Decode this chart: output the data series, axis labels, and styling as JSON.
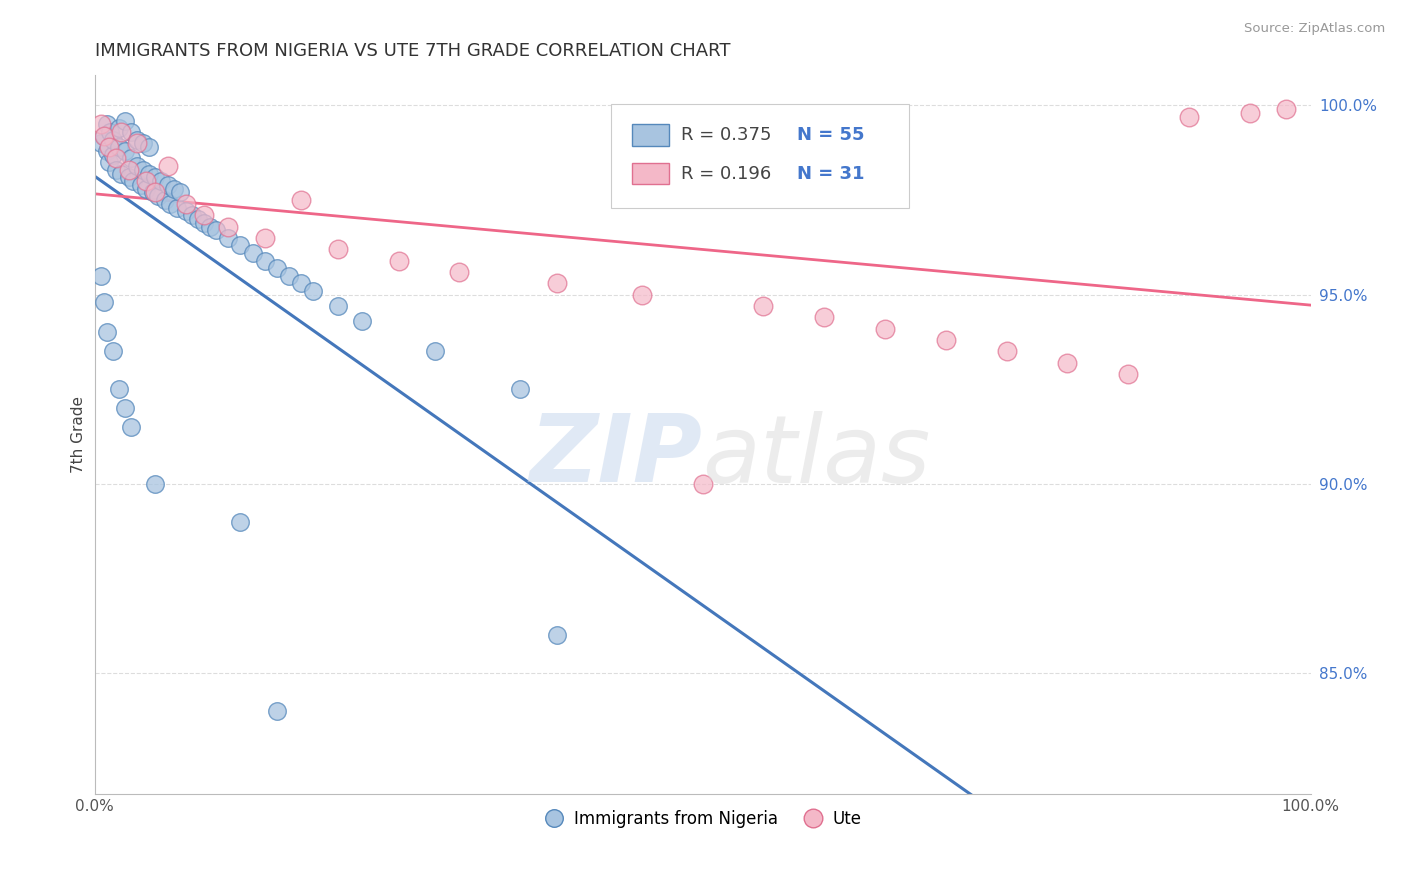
{
  "title": "IMMIGRANTS FROM NIGERIA VS UTE 7TH GRADE CORRELATION CHART",
  "source_text": "Source: ZipAtlas.com",
  "ylabel": "7th Grade",
  "blue_label": "Immigrants from Nigeria",
  "pink_label": "Ute",
  "blue_R": 0.375,
  "blue_N": 55,
  "pink_R": 0.196,
  "pink_N": 31,
  "xmin": 0.0,
  "xmax": 1.0,
  "ymin": 0.818,
  "ymax": 1.008,
  "yticks": [
    0.85,
    0.9,
    0.95,
    1.0
  ],
  "ytick_labels": [
    "85.0%",
    "90.0%",
    "95.0%",
    "100.0%"
  ],
  "xtick_labels": [
    "0.0%",
    "100.0%"
  ],
  "blue_scatter_x": [
    0.005,
    0.008,
    0.01,
    0.01,
    0.012,
    0.013,
    0.015,
    0.015,
    0.018,
    0.02,
    0.02,
    0.022,
    0.025,
    0.025,
    0.028,
    0.03,
    0.03,
    0.032,
    0.035,
    0.035,
    0.038,
    0.04,
    0.04,
    0.042,
    0.045,
    0.045,
    0.048,
    0.05,
    0.052,
    0.055,
    0.058,
    0.06,
    0.062,
    0.065,
    0.068,
    0.07,
    0.075,
    0.08,
    0.085,
    0.09,
    0.095,
    0.1,
    0.11,
    0.12,
    0.13,
    0.14,
    0.15,
    0.16,
    0.17,
    0.18,
    0.2,
    0.22,
    0.28,
    0.35,
    0.38
  ],
  "blue_scatter_y": [
    0.99,
    0.992,
    0.988,
    0.995,
    0.985,
    0.993,
    0.987,
    0.991,
    0.983,
    0.989,
    0.994,
    0.982,
    0.988,
    0.996,
    0.981,
    0.986,
    0.993,
    0.98,
    0.984,
    0.991,
    0.979,
    0.983,
    0.99,
    0.978,
    0.982,
    0.989,
    0.977,
    0.981,
    0.976,
    0.98,
    0.975,
    0.979,
    0.974,
    0.978,
    0.973,
    0.977,
    0.972,
    0.971,
    0.97,
    0.969,
    0.968,
    0.967,
    0.965,
    0.963,
    0.961,
    0.959,
    0.957,
    0.955,
    0.953,
    0.951,
    0.947,
    0.943,
    0.935,
    0.925,
    0.86
  ],
  "blue_scatter_outliers_x": [
    0.005,
    0.008,
    0.01,
    0.015,
    0.02,
    0.025,
    0.03,
    0.05,
    0.12,
    0.15
  ],
  "blue_scatter_outliers_y": [
    0.955,
    0.948,
    0.94,
    0.935,
    0.925,
    0.92,
    0.915,
    0.9,
    0.89,
    0.84
  ],
  "pink_scatter_x": [
    0.005,
    0.008,
    0.012,
    0.018,
    0.022,
    0.028,
    0.035,
    0.042,
    0.05,
    0.06,
    0.075,
    0.09,
    0.11,
    0.14,
    0.17,
    0.2,
    0.25,
    0.3,
    0.38,
    0.45,
    0.5,
    0.55,
    0.6,
    0.65,
    0.7,
    0.75,
    0.8,
    0.85,
    0.9,
    0.95,
    0.98
  ],
  "pink_scatter_y": [
    0.995,
    0.992,
    0.989,
    0.986,
    0.993,
    0.983,
    0.99,
    0.98,
    0.977,
    0.984,
    0.974,
    0.971,
    0.968,
    0.965,
    0.975,
    0.962,
    0.959,
    0.956,
    0.953,
    0.95,
    0.9,
    0.947,
    0.944,
    0.941,
    0.938,
    0.935,
    0.932,
    0.929,
    0.997,
    0.998,
    0.999
  ],
  "blue_color": "#a8c4e0",
  "pink_color": "#f4b8c8",
  "blue_edge_color": "#5588bb",
  "pink_edge_color": "#e07090",
  "blue_line_color": "#4477bb",
  "pink_line_color": "#ee6688",
  "grid_color": "#dddddd",
  "title_fontsize": 13,
  "tick_fontsize": 11
}
